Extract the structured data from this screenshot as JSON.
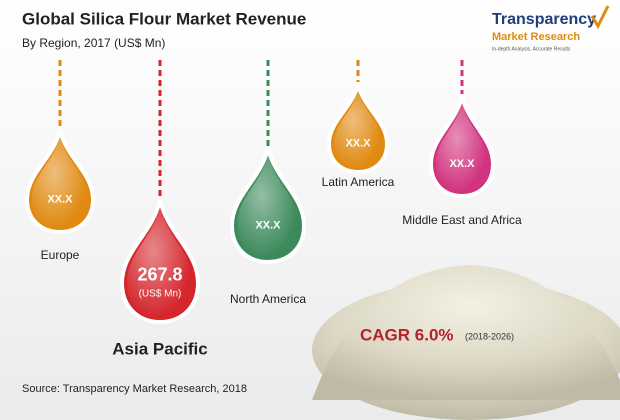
{
  "header": {
    "title": "Global Silica Flour Market Revenue",
    "subtitle": "By Region, 2017 (US$ Mn)"
  },
  "logo": {
    "name": "Transparency",
    "name2": "Market Research",
    "tagline": "In-depth Analysis. Accurate Results"
  },
  "regions": [
    {
      "label": "Europe",
      "value": "XX.X",
      "color": "#e08a12"
    },
    {
      "label": "Asia Pacific",
      "value": "267.8",
      "unit": "(US$ Mn)",
      "color": "#d4262c"
    },
    {
      "label": "North America",
      "value": "XX.X",
      "color": "#3c8a5c"
    },
    {
      "label": "Latin America",
      "value": "XX.X",
      "color": "#e08a12"
    },
    {
      "label": "Middle East and Africa",
      "value": "XX.X",
      "color": "#d2337e"
    }
  ],
  "cagr": {
    "label": "CAGR 6.0%",
    "period": "(2018-2026)"
  },
  "source": "Source: Transparency Market Research, 2018"
}
